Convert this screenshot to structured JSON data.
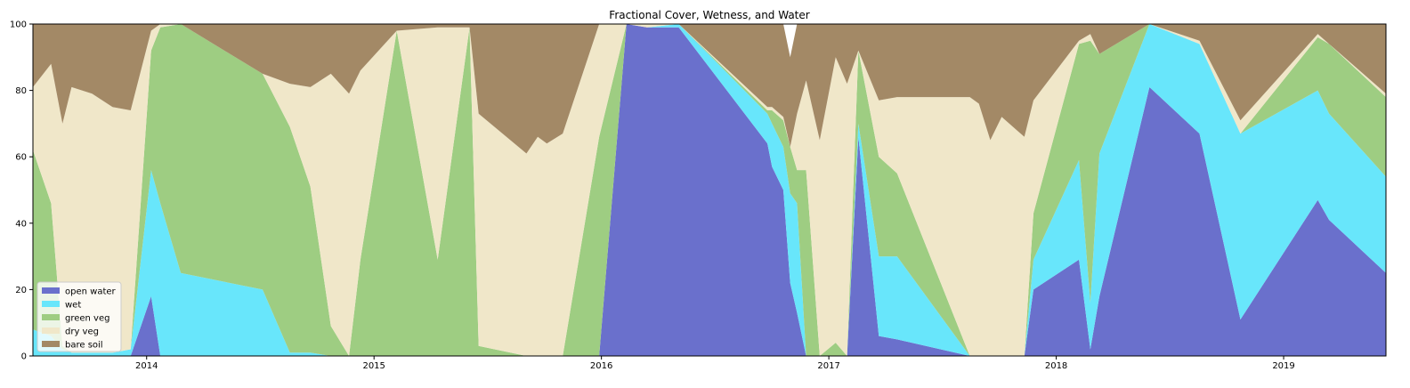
{
  "chart_data": {
    "type": "area",
    "stacked": true,
    "title": "Fractional Cover, Wetness, and Water",
    "xlabel": "",
    "ylabel": "",
    "xlim": [
      2013.5,
      2019.45
    ],
    "ylim": [
      0,
      100
    ],
    "x_ticks": [
      2014,
      2015,
      2016,
      2017,
      2018,
      2019
    ],
    "x_tick_labels": [
      "2014",
      "2015",
      "2016",
      "2017",
      "2018",
      "2019"
    ],
    "y_ticks": [
      0,
      20,
      40,
      60,
      80,
      100
    ],
    "y_tick_labels": [
      "0",
      "20",
      "40",
      "60",
      "80",
      "100"
    ],
    "grid": false,
    "legend_position": "lower-left",
    "x": [
      2013.5,
      2013.58,
      2013.63,
      2013.67,
      2013.76,
      2013.85,
      2013.93,
      2014.02,
      2014.06,
      2014.15,
      2014.51,
      2014.63,
      2014.72,
      2014.81,
      2014.89,
      2014.94,
      2015.1,
      2015.28,
      2015.42,
      2015.46,
      2015.67,
      2015.72,
      2015.76,
      2015.83,
      2015.99,
      2016.11,
      2016.2,
      2016.34,
      2016.73,
      2016.75,
      2016.8,
      2016.83,
      2016.86,
      2016.9,
      2016.96,
      2017.03,
      2017.08,
      2017.13,
      2017.22,
      2017.3,
      2017.62,
      2017.66,
      2017.71,
      2017.76,
      2017.86,
      2017.9,
      2018.1,
      2018.15,
      2018.19,
      2018.41,
      2018.63,
      2018.81,
      2019.15,
      2019.2,
      2019.45
    ],
    "series": [
      {
        "name": "open water",
        "color": "#6a70cc",
        "values": [
          0,
          0,
          0,
          0,
          0,
          0,
          0,
          18,
          0,
          0,
          0,
          0,
          0,
          0,
          0,
          0,
          0,
          0,
          0,
          0,
          0,
          0,
          0,
          0,
          0,
          100,
          99,
          99,
          64,
          57,
          50,
          22,
          13,
          0,
          0,
          0,
          0,
          66,
          6,
          5,
          0,
          0,
          0,
          0,
          0,
          20,
          29,
          2,
          18,
          81,
          67,
          11,
          47,
          41,
          25
        ]
      },
      {
        "name": "wet",
        "color": "#68e6fb",
        "values": [
          8,
          6,
          2,
          1,
          1,
          1,
          2,
          38,
          46,
          25,
          20,
          1,
          1,
          0,
          0,
          0,
          0,
          0,
          0,
          0,
          0,
          0,
          0,
          0,
          0,
          0,
          0,
          1,
          9,
          13,
          13,
          27,
          33,
          0,
          0,
          0,
          0,
          4,
          24,
          25,
          0,
          0,
          0,
          0,
          0,
          9,
          30,
          14,
          43,
          19,
          27,
          56,
          33,
          32,
          29
        ]
      },
      {
        "name": "green veg",
        "color": "#9ecd82",
        "values": [
          54,
          40,
          1,
          0,
          0,
          0,
          0,
          36,
          53,
          75,
          65,
          68,
          50,
          9,
          0,
          29,
          98,
          29,
          99,
          3,
          0,
          0,
          0,
          0,
          66,
          0,
          0,
          0,
          1,
          4,
          8,
          14,
          10,
          56,
          0,
          4,
          0,
          22,
          30,
          25,
          0,
          0,
          0,
          0,
          0,
          14,
          35,
          79,
          30,
          0,
          0,
          0,
          16,
          21,
          24
        ]
      },
      {
        "name": "dry veg",
        "color": "#f0e7c9",
        "values": [
          19,
          42,
          67,
          80,
          78,
          74,
          72,
          6,
          1,
          0,
          0,
          13,
          30,
          76,
          79,
          57,
          0,
          70,
          0,
          70,
          61,
          66,
          64,
          67,
          34,
          0,
          1,
          0,
          1,
          1,
          1,
          0,
          17,
          27,
          65,
          86,
          82,
          0,
          17,
          23,
          78,
          76,
          65,
          72,
          66,
          34,
          1,
          2,
          0,
          0,
          1,
          4,
          1,
          0,
          1
        ]
      },
      {
        "name": "bare soil",
        "color": "#a38966",
        "values": [
          19,
          12,
          30,
          19,
          21,
          25,
          26,
          2,
          0,
          0,
          15,
          18,
          19,
          15,
          21,
          14,
          2,
          1,
          1,
          27,
          39,
          34,
          36,
          33,
          0,
          0,
          0,
          0,
          25,
          25,
          28,
          27,
          27,
          17,
          35,
          10,
          18,
          8,
          23,
          22,
          22,
          24,
          35,
          28,
          34,
          23,
          5,
          3,
          9,
          0,
          5,
          29,
          3,
          7,
          21
        ]
      }
    ]
  }
}
